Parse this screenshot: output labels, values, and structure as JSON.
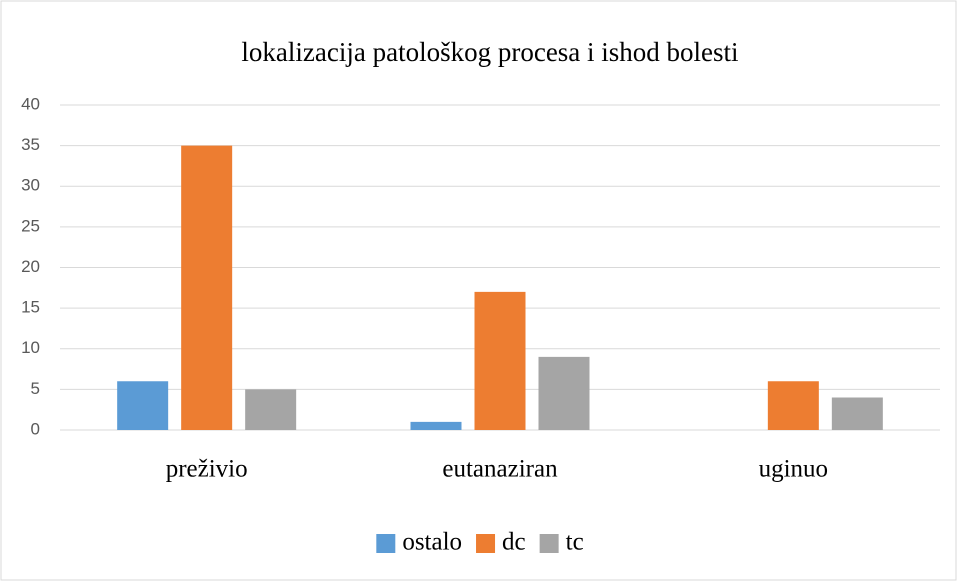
{
  "chart_data": {
    "type": "bar",
    "title": "lokalizacija patološkog procesa i ishod bolesti",
    "categories": [
      "preživio",
      "eutanaziran",
      "uginuo"
    ],
    "series": [
      {
        "name": "ostalo",
        "color": "#5b9bd5",
        "values": [
          6,
          1,
          0
        ]
      },
      {
        "name": "dc",
        "color": "#ed7d31",
        "values": [
          35,
          17,
          6
        ]
      },
      {
        "name": "tc",
        "color": "#a5a5a5",
        "values": [
          5,
          9,
          4
        ]
      }
    ],
    "ylim": [
      0,
      40
    ],
    "yticks": [
      0,
      5,
      10,
      15,
      20,
      25,
      30,
      35,
      40
    ],
    "grid": true,
    "legend": "bottom"
  }
}
